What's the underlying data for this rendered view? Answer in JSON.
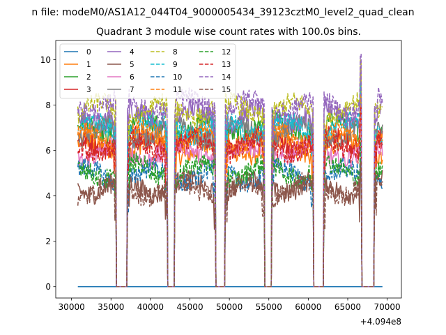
{
  "chart_data": {
    "type": "line",
    "suptitle": "n file: modeM0/AS1A12_044T04_9000005434_39123cztM0_level2_quad_clean",
    "title": "Quadrant 3 module wise count rates with 100.0s bins.",
    "xlabel": "",
    "ylabel": "",
    "x_offset_label": "+4.094e8",
    "xlim": [
      28000,
      71800
    ],
    "ylim": [
      -0.5,
      10.85
    ],
    "x_ticks": [
      30000,
      35000,
      40000,
      45000,
      50000,
      55000,
      60000,
      65000,
      70000
    ],
    "x_tick_labels": [
      "30000",
      "35000",
      "40000",
      "45000",
      "50000",
      "55000",
      "60000",
      "65000",
      "70000"
    ],
    "y_ticks": [
      0,
      2,
      4,
      6,
      8,
      10
    ],
    "y_tick_labels": [
      "0",
      "2",
      "4",
      "6",
      "8",
      "10"
    ],
    "grid": false,
    "legend": {
      "placement": "upper-left",
      "ncol": 4
    },
    "gaps": [
      [
        35600,
        37100
      ],
      [
        42100,
        43100
      ],
      [
        48200,
        49500
      ],
      [
        54400,
        55400
      ],
      [
        60600,
        62000
      ],
      [
        66700,
        68400
      ]
    ],
    "segments": [
      [
        30800,
        35600
      ],
      [
        37100,
        42100
      ],
      [
        43100,
        48200
      ],
      [
        49500,
        54400
      ],
      [
        55400,
        60600
      ],
      [
        62000,
        66700
      ],
      [
        68400,
        69400
      ]
    ],
    "spike_x": 66650,
    "bin_width_s": 100,
    "series": [
      {
        "name": "0",
        "color": "#1f77b4",
        "dashed": false,
        "constant": 0
      },
      {
        "name": "1",
        "color": "#ff7f0e",
        "dashed": false,
        "level": 6.1
      },
      {
        "name": "2",
        "color": "#2ca02c",
        "dashed": false,
        "level": 7.0
      },
      {
        "name": "3",
        "color": "#d62728",
        "dashed": false,
        "level": 6.4
      },
      {
        "name": "4",
        "color": "#9467bd",
        "dashed": false,
        "level": 7.5
      },
      {
        "name": "5",
        "color": "#8c564b",
        "dashed": false,
        "level": 4.4
      },
      {
        "name": "6",
        "color": "#e377c2",
        "dashed": false,
        "level": 5.9
      },
      {
        "name": "7",
        "color": "#7f7f7f",
        "dashed": false,
        "level": 6.8
      },
      {
        "name": "8",
        "color": "#bcbd22",
        "dashed": true,
        "level": 7.8
      },
      {
        "name": "9",
        "color": "#17becf",
        "dashed": true,
        "level": 7.0
      },
      {
        "name": "10",
        "color": "#1f77b4",
        "dashed": true,
        "level": 4.9
      },
      {
        "name": "11",
        "color": "#ff7f0e",
        "dashed": true,
        "level": 6.6
      },
      {
        "name": "12",
        "color": "#2ca02c",
        "dashed": true,
        "level": 5.1
      },
      {
        "name": "13",
        "color": "#d62728",
        "dashed": true,
        "level": 6.2
      },
      {
        "name": "14",
        "color": "#9467bd",
        "dashed": true,
        "level": 8.0
      },
      {
        "name": "15",
        "color": "#8c564b",
        "dashed": true,
        "level": 4.3
      }
    ]
  }
}
